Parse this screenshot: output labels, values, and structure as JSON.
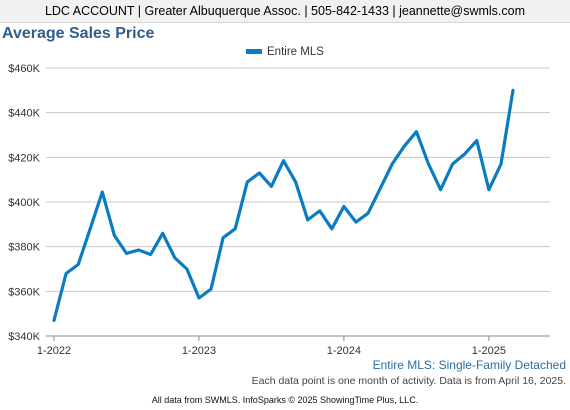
{
  "header": {
    "text": "LDC ACCOUNT | Greater Albuquerque Assoc. | 505-842-1433 | jeannette@swmls.com"
  },
  "chart_title": "Average Sales Price",
  "chart_data": {
    "type": "line",
    "title": "Average Sales Price",
    "xlabel": "",
    "ylabel": "",
    "x_tick_labels": [
      "1-2022",
      "1-2023",
      "1-2024",
      "1-2025"
    ],
    "y_tick_labels": [
      "$340K",
      "$360K",
      "$380K",
      "$400K",
      "$420K",
      "$440K",
      "$460K"
    ],
    "ylim": [
      340000,
      460000
    ],
    "grid": "horizontal",
    "legend_position": "top-center",
    "x": [
      "1-2022",
      "2-2022",
      "3-2022",
      "4-2022",
      "5-2022",
      "6-2022",
      "7-2022",
      "8-2022",
      "9-2022",
      "10-2022",
      "11-2022",
      "12-2022",
      "1-2023",
      "2-2023",
      "3-2023",
      "4-2023",
      "5-2023",
      "6-2023",
      "7-2023",
      "8-2023",
      "9-2023",
      "10-2023",
      "11-2023",
      "12-2023",
      "1-2024",
      "2-2024",
      "3-2024",
      "4-2024",
      "5-2024",
      "6-2024",
      "7-2024",
      "8-2024",
      "9-2024",
      "10-2024",
      "11-2024",
      "12-2024",
      "1-2025",
      "2-2025",
      "3-2025"
    ],
    "series": [
      {
        "name": "Entire MLS",
        "color": "#0a7cc1",
        "values": [
          347000,
          368000,
          372000,
          388000,
          404500,
          385000,
          377000,
          378500,
          376500,
          386000,
          375000,
          370000,
          357000,
          361000,
          384000,
          388000,
          409000,
          413000,
          407000,
          418500,
          409000,
          392000,
          396000,
          388000,
          398000,
          391000,
          395000,
          406000,
          417000,
          425000,
          431500,
          417000,
          405500,
          417000,
          421500,
          427500,
          405500,
          417000,
          450000
        ]
      }
    ]
  },
  "subtitle": "Entire MLS: Single-Family Detached",
  "note": "Each data point is one month of activity. Data is from April 16, 2025.",
  "footer": "All data from SWMLS. InfoSparks © 2025 ShowingTime Plus, LLC."
}
